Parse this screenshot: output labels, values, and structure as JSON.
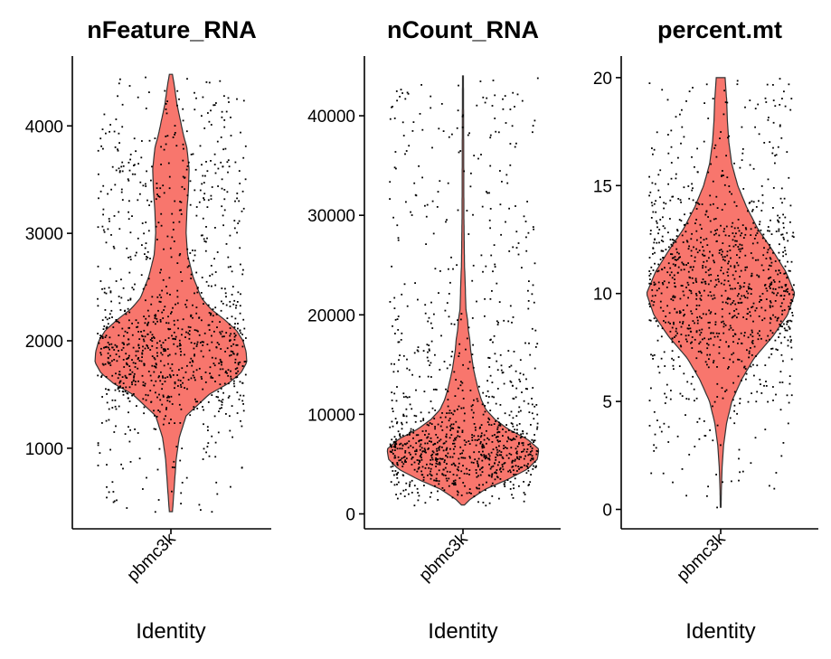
{
  "chart_data": [
    {
      "type": "violin",
      "title": "nFeature_RNA",
      "xlabel": "Identity",
      "ylabel": "",
      "categories": [
        "pbmc3k"
      ],
      "yticks": [
        1000,
        2000,
        3000,
        4000
      ],
      "ylim": [
        250,
        4650
      ],
      "data_range": [
        410,
        4480
      ],
      "violin_color": "#F8766D",
      "density_profile": [
        [
          410,
          0.02
        ],
        [
          500,
          0.03
        ],
        [
          700,
          0.05
        ],
        [
          900,
          0.07
        ],
        [
          1100,
          0.11
        ],
        [
          1300,
          0.2
        ],
        [
          1500,
          0.5
        ],
        [
          1600,
          0.75
        ],
        [
          1700,
          0.92
        ],
        [
          1800,
          1.0
        ],
        [
          1900,
          0.99
        ],
        [
          2000,
          0.95
        ],
        [
          2100,
          0.86
        ],
        [
          2200,
          0.7
        ],
        [
          2300,
          0.52
        ],
        [
          2400,
          0.4
        ],
        [
          2600,
          0.29
        ],
        [
          2800,
          0.22
        ],
        [
          3000,
          0.2
        ],
        [
          3200,
          0.21
        ],
        [
          3400,
          0.23
        ],
        [
          3600,
          0.24
        ],
        [
          3800,
          0.21
        ],
        [
          3900,
          0.17
        ],
        [
          4000,
          0.14
        ],
        [
          4100,
          0.11
        ],
        [
          4200,
          0.08
        ],
        [
          4300,
          0.06
        ],
        [
          4400,
          0.04
        ],
        [
          4480,
          0.02
        ]
      ]
    },
    {
      "type": "violin",
      "title": "nCount_RNA",
      "xlabel": "Identity",
      "ylabel": "",
      "categories": [
        "pbmc3k"
      ],
      "yticks": [
        0,
        10000,
        20000,
        30000,
        40000
      ],
      "ylim": [
        -1500,
        46000
      ],
      "data_range": [
        900,
        44000
      ],
      "violin_color": "#F8766D",
      "density_profile": [
        [
          900,
          0.02
        ],
        [
          1500,
          0.1
        ],
        [
          2500,
          0.3
        ],
        [
          3500,
          0.6
        ],
        [
          4500,
          0.85
        ],
        [
          5500,
          0.98
        ],
        [
          6500,
          1.0
        ],
        [
          7500,
          0.85
        ],
        [
          8500,
          0.6
        ],
        [
          9500,
          0.42
        ],
        [
          10500,
          0.3
        ],
        [
          11500,
          0.24
        ],
        [
          12500,
          0.2
        ],
        [
          13500,
          0.17
        ],
        [
          14500,
          0.14
        ],
        [
          15500,
          0.12
        ],
        [
          16500,
          0.1
        ],
        [
          17500,
          0.09
        ],
        [
          18500,
          0.07
        ],
        [
          19500,
          0.06
        ],
        [
          20500,
          0.04
        ],
        [
          21500,
          0.035
        ],
        [
          23000,
          0.03
        ],
        [
          25000,
          0.02
        ],
        [
          30000,
          0.012
        ],
        [
          35000,
          0.01
        ],
        [
          40000,
          0.008
        ],
        [
          44000,
          0.006
        ]
      ]
    },
    {
      "type": "violin",
      "title": "percent.mt",
      "xlabel": "Identity",
      "ylabel": "",
      "categories": [
        "pbmc3k"
      ],
      "yticks": [
        0,
        5,
        10,
        15,
        20
      ],
      "ylim": [
        -0.9,
        21.0
      ],
      "data_range": [
        0.1,
        20.0
      ],
      "violin_color": "#F8766D",
      "density_profile": [
        [
          0.1,
          0.005
        ],
        [
          1,
          0.01
        ],
        [
          2,
          0.02
        ],
        [
          3,
          0.04
        ],
        [
          4,
          0.08
        ],
        [
          5,
          0.15
        ],
        [
          6,
          0.28
        ],
        [
          7,
          0.45
        ],
        [
          8,
          0.7
        ],
        [
          9,
          0.9
        ],
        [
          10,
          1.0
        ],
        [
          11,
          0.88
        ],
        [
          12,
          0.7
        ],
        [
          13,
          0.5
        ],
        [
          14,
          0.35
        ],
        [
          15,
          0.23
        ],
        [
          16,
          0.15
        ],
        [
          17,
          0.11
        ],
        [
          18,
          0.09
        ],
        [
          19,
          0.08
        ],
        [
          20,
          0.06
        ]
      ]
    }
  ]
}
